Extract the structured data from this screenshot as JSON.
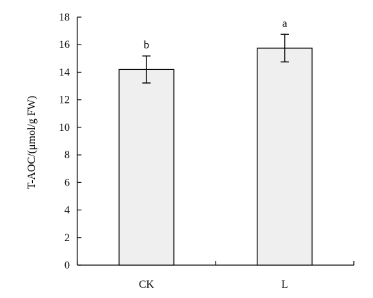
{
  "chart_data": {
    "type": "bar",
    "title": "",
    "xlabel": "",
    "ylabel": "T-AOC/(μmol/g FW)",
    "categories": [
      "CK",
      "L"
    ],
    "series": [
      {
        "values": [
          14.2,
          15.75
        ],
        "errors": [
          0.98,
          1.0
        ],
        "significance": [
          "b",
          "a"
        ]
      }
    ],
    "ylim": [
      0,
      18
    ],
    "yticks": [
      0,
      2,
      4,
      6,
      8,
      10,
      12,
      14,
      16,
      18
    ],
    "legend": "none",
    "grid": false,
    "colors": {
      "bar_fill": "#efefef",
      "bar_stroke": "#000000",
      "axis": "#000000"
    }
  }
}
